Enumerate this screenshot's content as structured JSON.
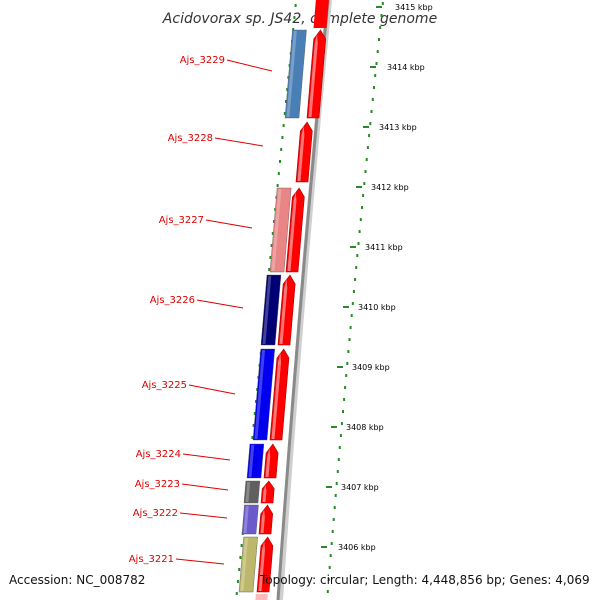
{
  "title": "Acidovorax sp. JS42, complete genome",
  "accession_text": "Accession: NC_008782",
  "summary_text": "Topology: circular; Length: 4,448,856 bp; Genes: 4,069",
  "colors": {
    "cds": "#ff0000",
    "cds_light": "#ffbbbb",
    "backbone": "#8a8a8a",
    "tick": "#2a8a2a",
    "label": "#dd0000"
  },
  "scale_ticks": [
    {
      "kbp": 3415,
      "label": "3415 kbp"
    },
    {
      "kbp": 3414,
      "label": "3414 kbp"
    },
    {
      "kbp": 3413,
      "label": "3413 kbp"
    },
    {
      "kbp": 3412,
      "label": "3412 kbp"
    },
    {
      "kbp": 3411,
      "label": "3411 kbp"
    },
    {
      "kbp": 3410,
      "label": "3410 kbp"
    },
    {
      "kbp": 3409,
      "label": "3409 kbp"
    },
    {
      "kbp": 3408,
      "label": "3408 kbp"
    },
    {
      "kbp": 3407,
      "label": "3407 kbp"
    },
    {
      "kbp": 3406,
      "label": "3406 kbp"
    }
  ],
  "genes": [
    {
      "name": "Ajs_3229",
      "color": "#4a7fb5"
    },
    {
      "name": "Ajs_3228",
      "color": ""
    },
    {
      "name": "Ajs_3227",
      "color": "#e98585"
    },
    {
      "name": "Ajs_3226",
      "color": "#000075"
    },
    {
      "name": "Ajs_3225",
      "color": "#0000ee"
    },
    {
      "name": "Ajs_3224",
      "color": "#0000ee"
    },
    {
      "name": "Ajs_3223",
      "color": "#606060"
    },
    {
      "name": "Ajs_3222",
      "color": "#6a5acd"
    },
    {
      "name": "Ajs_3221",
      "color": "#bdb76b"
    }
  ]
}
